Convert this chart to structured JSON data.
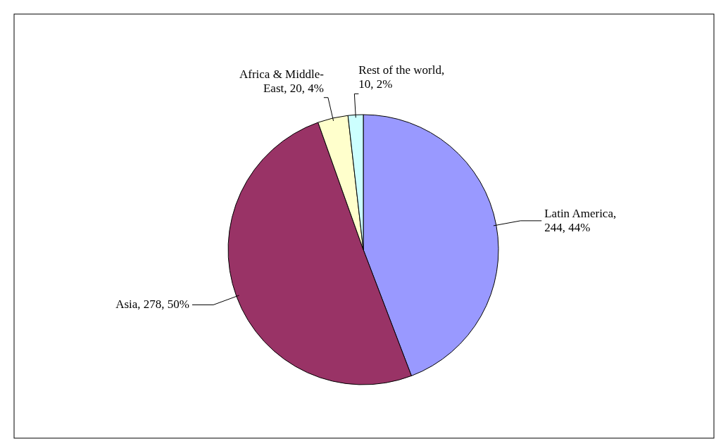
{
  "chart_data": {
    "type": "pie",
    "categories": [
      "Latin America",
      "Asia",
      "Africa & Middle-East",
      "Rest of the world"
    ],
    "values": [
      244,
      278,
      20,
      10
    ],
    "colors": [
      "#9999ff",
      "#993366",
      "#ffffcc",
      "#ccffff"
    ],
    "value_labels": [
      ", 244, 44%",
      ", 278, 50%",
      ", 20, 4%",
      ", 10, 2%"
    ],
    "legend": false
  }
}
